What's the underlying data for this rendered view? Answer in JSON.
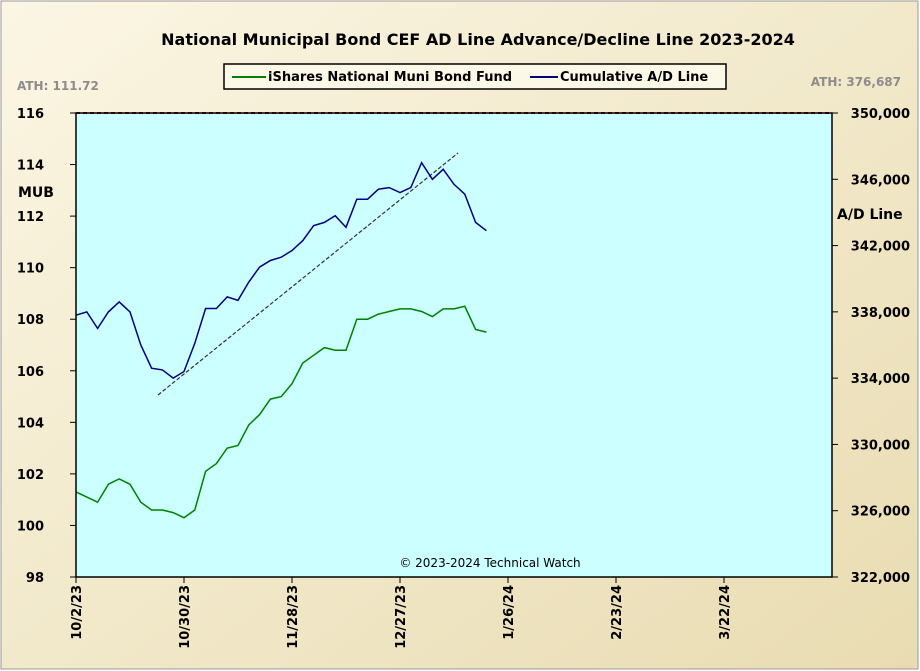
{
  "chart_data": {
    "type": "line",
    "title": "National Municipal Bond CEF AD Line Advance/Decline Line 2023-2024",
    "y_label": "MUB",
    "y2_label": "A/D Line",
    "annotations": [
      "ATH: 111.72",
      "ATH: 376,687",
      "© 2023-2024 Technical Watch"
    ],
    "legend": "top",
    "grid": false,
    "x": [
      0,
      2,
      4,
      6,
      8,
      10,
      12,
      14,
      16,
      18,
      20,
      22,
      24,
      26,
      28,
      30,
      32,
      34,
      36,
      38,
      40,
      42,
      44,
      46,
      48,
      50,
      52,
      54,
      56,
      58,
      60,
      62,
      64,
      66,
      68,
      70,
      72,
      74,
      76
    ],
    "xlim": [
      0,
      140
    ],
    "xticks": [
      {
        "value": 0,
        "label": "10/2/23"
      },
      {
        "value": 20,
        "label": "10/30/23"
      },
      {
        "value": 40,
        "label": "11/28/23"
      },
      {
        "value": 60,
        "label": "12/27/23"
      },
      {
        "value": 80,
        "label": "1/26/24"
      },
      {
        "value": 100,
        "label": "2/23/24"
      },
      {
        "value": 120,
        "label": "3/22/24"
      }
    ],
    "ylim": [
      98,
      116
    ],
    "yticks": [
      98,
      100,
      102,
      104,
      106,
      108,
      110,
      112,
      114,
      116
    ],
    "y2lim": [
      322000,
      350000
    ],
    "y2ticks": [
      {
        "value": 322000,
        "label": "322,000"
      },
      {
        "value": 326000,
        "label": "326,000"
      },
      {
        "value": 330000,
        "label": "330,000"
      },
      {
        "value": 334000,
        "label": "334,000"
      },
      {
        "value": 338000,
        "label": "338,000"
      },
      {
        "value": 342000,
        "label": "342,000"
      },
      {
        "value": 346000,
        "label": "346,000"
      },
      {
        "value": 350000,
        "label": "350,000"
      }
    ],
    "series": [
      {
        "name": "iShares National Muni Bond Fund",
        "color": "#008000",
        "axis": "y",
        "values": [
          101.3,
          101.1,
          100.9,
          101.6,
          101.8,
          101.6,
          100.9,
          100.6,
          100.6,
          100.5,
          100.3,
          100.6,
          102.1,
          102.4,
          103.0,
          103.1,
          103.9,
          104.3,
          104.9,
          105.0,
          105.5,
          106.3,
          106.6,
          106.9,
          106.8,
          106.8,
          108.0,
          108.0,
          108.2,
          108.3,
          108.4,
          108.4,
          108.3,
          108.1,
          108.4,
          108.4,
          108.5,
          107.6,
          107.5
        ]
      },
      {
        "name": "Cumulative A/D Line",
        "color": "#000080",
        "axis": "y2",
        "values": [
          337800,
          338000,
          337000,
          338000,
          338600,
          338000,
          336000,
          334600,
          334500,
          334000,
          334400,
          336100,
          338200,
          338200,
          338900,
          338700,
          339800,
          340700,
          341100,
          341300,
          341700,
          342300,
          343200,
          343400,
          343800,
          343100,
          344800,
          344800,
          345400,
          345500,
          345200,
          345500,
          347000,
          346000,
          346600,
          345700,
          345100,
          343400,
          342900
        ]
      }
    ]
  }
}
